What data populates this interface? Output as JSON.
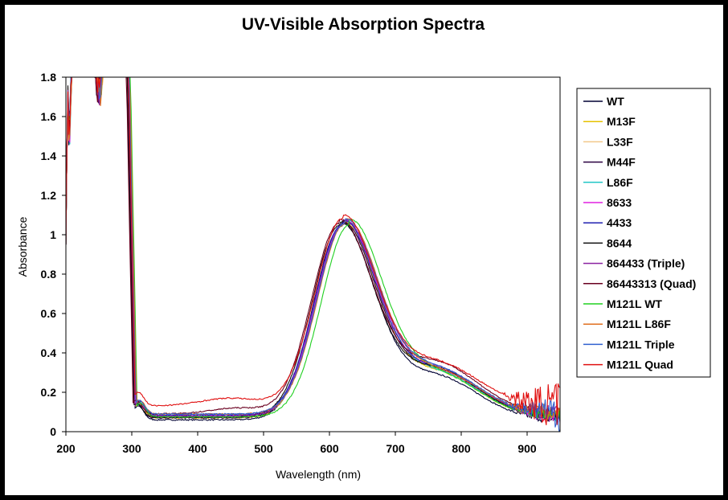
{
  "chart_data": {
    "type": "line",
    "title": "UV-Visible Absorption Spectra",
    "xlabel": "Wavelength (nm)",
    "ylabel": "Absorbance",
    "xlim": [
      200,
      950
    ],
    "ylim": [
      0,
      1.8
    ],
    "x_ticks": [
      "200",
      "300",
      "400",
      "500",
      "600",
      "700",
      "800",
      "900"
    ],
    "y_ticks": [
      "0",
      "0.2",
      "0.4",
      "0.6",
      "0.8",
      "1",
      "1.2",
      "1.4",
      "1.6",
      "1.8"
    ],
    "grid": false,
    "legend_position": "right",
    "series": [
      {
        "name": "WT",
        "color": "#000033",
        "peak": 618,
        "visible_min": 0.06,
        "shoulder": 0.22,
        "shift": 0,
        "noise": 0.025
      },
      {
        "name": "M13F",
        "color": "#e6c200",
        "peak": 620,
        "visible_min": 0.07,
        "shoulder": 0.23,
        "shift": 1,
        "noise": 0.02
      },
      {
        "name": "L33F",
        "color": "#f2c88a",
        "peak": 621,
        "visible_min": 0.075,
        "shoulder": 0.23,
        "shift": 2,
        "noise": 0.02
      },
      {
        "name": "M44F",
        "color": "#2a0040",
        "peak": 619,
        "visible_min": 0.07,
        "shoulder": 0.24,
        "shift": -1,
        "noise": 0.02
      },
      {
        "name": "L86F",
        "color": "#22c7c7",
        "peak": 622,
        "visible_min": 0.08,
        "shoulder": 0.22,
        "shift": 1,
        "noise": 0.03
      },
      {
        "name": "8633",
        "color": "#e020e0",
        "peak": 621,
        "visible_min": 0.08,
        "shoulder": 0.23,
        "shift": 0,
        "noise": 0.04
      },
      {
        "name": "4433",
        "color": "#2020b0",
        "peak": 620,
        "visible_min": 0.085,
        "shoulder": 0.23,
        "shift": 2,
        "noise": 0.03
      },
      {
        "name": "8644",
        "color": "#101010",
        "peak": 616,
        "visible_min": 0.075,
        "shoulder": 0.24,
        "shift": -2,
        "noise": 0.02
      },
      {
        "name": "864433 (Triple)",
        "color": "#8a20a0",
        "peak": 622,
        "visible_min": 0.08,
        "shoulder": 0.24,
        "shift": 1,
        "noise": 0.05
      },
      {
        "name": "86443313 (Quad)",
        "color": "#6a0020",
        "peak": 615,
        "visible_min": 0.09,
        "shoulder": 0.26,
        "shift": -3,
        "noise": 0.03
      },
      {
        "name": "M121L WT",
        "color": "#20d020",
        "peak": 630,
        "visible_min": 0.075,
        "shoulder": 0.22,
        "shift": 3,
        "noise": 0.03
      },
      {
        "name": "M121L L86F",
        "color": "#e07020",
        "peak": 624,
        "visible_min": 0.09,
        "shoulder": 0.22,
        "shift": 2,
        "noise": 0.05
      },
      {
        "name": "M121L Triple",
        "color": "#3060d0",
        "peak": 623,
        "visible_min": 0.09,
        "shoulder": 0.23,
        "shift": 1,
        "noise": 0.08
      },
      {
        "name": "M121L Quad",
        "color": "#e01010",
        "peak": 620,
        "visible_min": 0.13,
        "shoulder": 0.22,
        "shift": 0,
        "noise": 0.12
      }
    ]
  }
}
